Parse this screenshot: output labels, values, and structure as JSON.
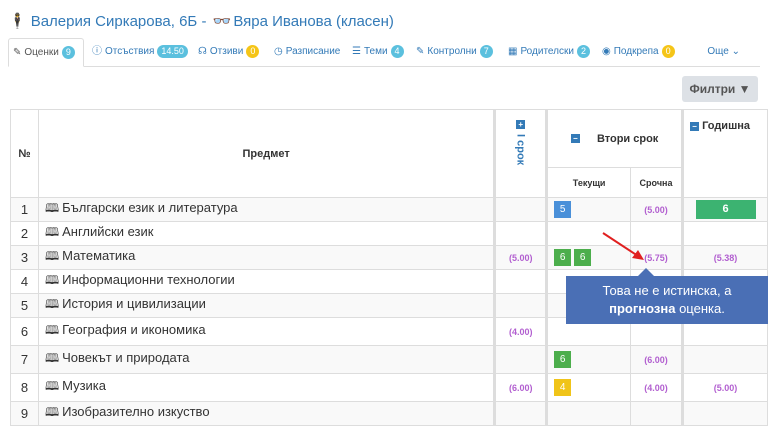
{
  "header": {
    "title_student": "Валерия Сиркарова, 6Б",
    "title_sep": " - ",
    "title_teacher": "Вяра Иванова (класен)"
  },
  "tabs": [
    {
      "label": "Оценки",
      "badge": "9",
      "color": "#5bc0de",
      "icon": "pencil-icon"
    },
    {
      "label": "Отсъствия",
      "badge": "14.50",
      "color": "#5bc0de",
      "icon": "info-icon"
    },
    {
      "label": "Отзиви",
      "badge": "0",
      "color": "#f5c518",
      "icon": "feedback-icon"
    },
    {
      "label": "Разписание",
      "badge": "",
      "icon": "clock-icon"
    },
    {
      "label": "Теми",
      "badge": "4",
      "color": "#5bc0de",
      "icon": "list-icon"
    },
    {
      "label": "Контролни",
      "badge": "7",
      "color": "#5bc0de",
      "icon": "edit-icon"
    },
    {
      "label": "Родителски",
      "badge": "2",
      "color": "#5bc0de",
      "icon": "calendar-icon"
    },
    {
      "label": "Подкрепа",
      "badge": "0",
      "color": "#f5c518",
      "icon": "eye-icon"
    }
  ],
  "more_label": "Още",
  "filter_label": "Филтри",
  "table": {
    "col_num": "№",
    "col_subject": "Предмет",
    "term1": "I срок",
    "term2": "Втори срок",
    "current": "Текущи",
    "urgent": "Срочна",
    "yearly": "Годишна",
    "rows": [
      {
        "n": "1",
        "subject": "Български език и литература",
        "t1": "",
        "grades": [
          {
            "v": "5",
            "c": "blue"
          }
        ],
        "urgent": "(5.00)",
        "year": "6",
        "yearbox": true
      },
      {
        "n": "2",
        "subject": "Английски език",
        "t1": "",
        "grades": [],
        "urgent": "",
        "year": ""
      },
      {
        "n": "3",
        "subject": "Математика",
        "t1": "(5.00)",
        "grades": [
          {
            "v": "6",
            "c": "green"
          },
          {
            "v": "6",
            "c": "green"
          }
        ],
        "urgent": "(5.75)",
        "year": "(5.38)"
      },
      {
        "n": "4",
        "subject": "Информационни технологии",
        "t1": "",
        "grades": [],
        "urgent": "",
        "year": ""
      },
      {
        "n": "5",
        "subject": "История и цивилизации",
        "t1": "",
        "grades": [],
        "urgent": "",
        "year": ""
      },
      {
        "n": "6",
        "subject": "География и икономика",
        "t1": "(4.00)",
        "grades": [],
        "urgent": "",
        "year": ""
      },
      {
        "n": "7",
        "subject": "Човекът и природата",
        "t1": "",
        "grades": [
          {
            "v": "6",
            "c": "green"
          }
        ],
        "urgent": "(6.00)",
        "year": ""
      },
      {
        "n": "8",
        "subject": "Музика",
        "t1": "(6.00)",
        "grades": [
          {
            "v": "4",
            "c": "yellow"
          }
        ],
        "urgent": "(4.00)",
        "year": "(5.00)"
      },
      {
        "n": "9",
        "subject": "Изобразително изкуство",
        "t1": "",
        "grades": [],
        "urgent": "",
        "year": ""
      }
    ]
  },
  "tooltip": {
    "line1": "Това не е истинска, а",
    "bold": "прогнозна",
    "rest": " оценка."
  }
}
